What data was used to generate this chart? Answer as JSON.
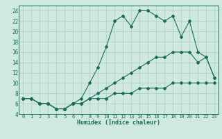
{
  "xlabel": "Humidex (Indice chaleur)",
  "ylabel": "",
  "bg_color": "#cfe8e0",
  "grid_color": "#a8cdc4",
  "line_color": "#1a6b5a",
  "xlim": [
    -0.5,
    23.5
  ],
  "ylim": [
    4,
    25
  ],
  "xticks": [
    0,
    1,
    2,
    3,
    4,
    5,
    6,
    7,
    8,
    9,
    10,
    11,
    12,
    13,
    14,
    15,
    16,
    17,
    18,
    19,
    20,
    21,
    22,
    23
  ],
  "yticks": [
    4,
    6,
    8,
    10,
    12,
    14,
    16,
    18,
    20,
    22,
    24
  ],
  "series": [
    {
      "x": [
        0,
        1,
        2,
        3,
        4,
        5,
        6,
        7,
        8,
        9,
        10,
        11,
        12,
        13,
        14,
        15,
        16,
        17,
        18,
        19,
        20,
        21,
        22,
        23
      ],
      "y": [
        7,
        7,
        6,
        6,
        5,
        5,
        6,
        7,
        10,
        13,
        17,
        22,
        23,
        21,
        24,
        24,
        23,
        22,
        23,
        19,
        22,
        16,
        15,
        11
      ]
    },
    {
      "x": [
        0,
        1,
        2,
        3,
        4,
        5,
        6,
        7,
        8,
        9,
        10,
        11,
        12,
        13,
        14,
        15,
        16,
        17,
        18,
        19,
        20,
        21,
        22,
        23
      ],
      "y": [
        7,
        7,
        6,
        6,
        5,
        5,
        6,
        6,
        7,
        8,
        9,
        10,
        11,
        12,
        13,
        14,
        15,
        15,
        16,
        16,
        16,
        14,
        15,
        11
      ]
    },
    {
      "x": [
        0,
        1,
        2,
        3,
        4,
        5,
        6,
        7,
        8,
        9,
        10,
        11,
        12,
        13,
        14,
        15,
        16,
        17,
        18,
        19,
        20,
        21,
        22,
        23
      ],
      "y": [
        7,
        7,
        6,
        6,
        5,
        5,
        6,
        6,
        7,
        7,
        7,
        8,
        8,
        8,
        9,
        9,
        9,
        9,
        10,
        10,
        10,
        10,
        10,
        10
      ]
    }
  ]
}
